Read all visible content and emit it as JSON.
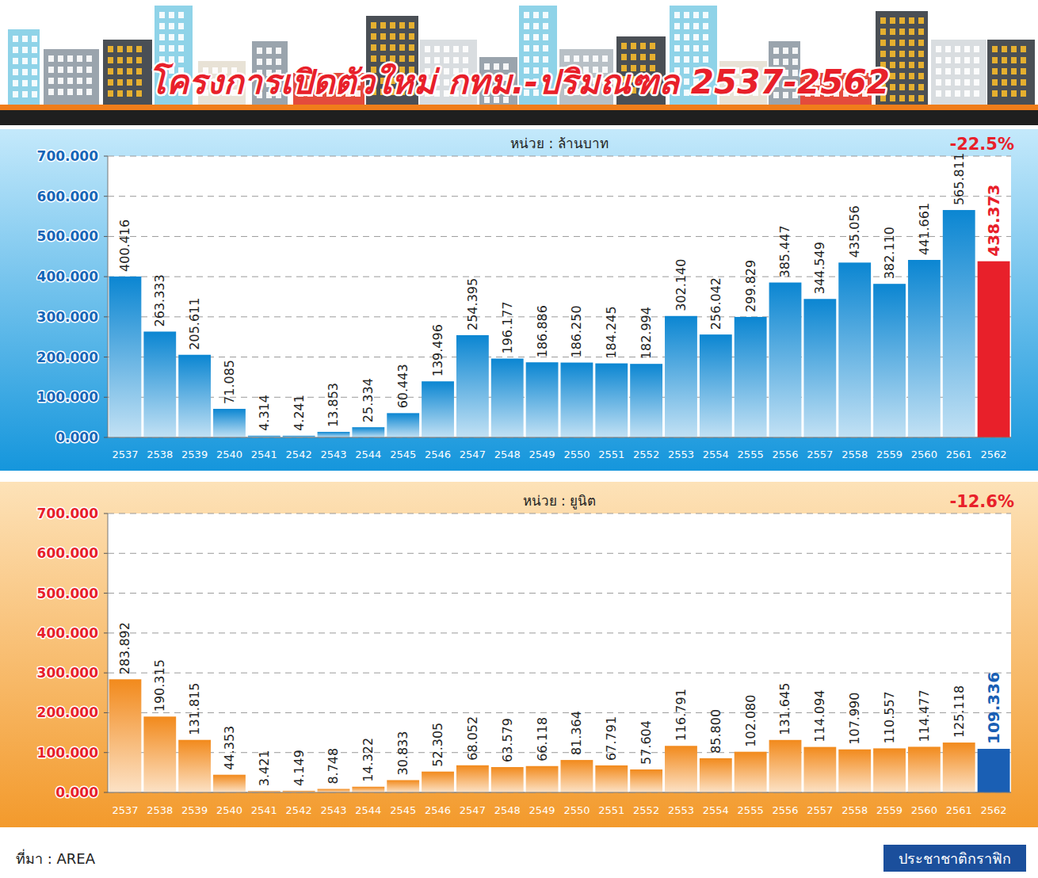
{
  "header": {
    "title": "โครงการเปิดตัวใหม่ กทม.-ปริมณฑล 2537-2562"
  },
  "footer": {
    "source": "ที่มา : AREA",
    "credit": "ประชาชาติกราฟิก"
  },
  "chart_data": [
    {
      "type": "bar",
      "subtitle": "หน่วย : ล้านบาท",
      "annotation": "-22.5%",
      "categories": [
        "2537",
        "2538",
        "2539",
        "2540",
        "2541",
        "2542",
        "2543",
        "2544",
        "2545",
        "2546",
        "2547",
        "2548",
        "2549",
        "2550",
        "2551",
        "2552",
        "2553",
        "2554",
        "2555",
        "2556",
        "2557",
        "2558",
        "2559",
        "2560",
        "2561",
        "2562"
      ],
      "values": [
        400.416,
        263.333,
        205.611,
        71.085,
        4.314,
        4.241,
        13.853,
        25.334,
        60.443,
        139.496,
        254.395,
        196.177,
        186.886,
        186.25,
        184.245,
        182.994,
        302.14,
        256.042,
        299.829,
        385.447,
        344.549,
        435.056,
        382.11,
        441.661,
        565.811,
        438.373
      ],
      "value_labels": [
        "400.416",
        "263.333",
        "205.611",
        "71.085",
        "4.314",
        "4.241",
        "13.853",
        "25.334",
        "60.443",
        "139.496",
        "254.395",
        "196.177",
        "186.886",
        "186.250",
        "184.245",
        "182.994",
        "302.140",
        "256.042",
        "299.829",
        "385.447",
        "344.549",
        "435.056",
        "382.110",
        "441.661",
        "565.811",
        "438.373"
      ],
      "colors": [
        "#0b86d2",
        "#0b86d2",
        "#0b86d2",
        "#0b86d2",
        "#0b86d2",
        "#0b86d2",
        "#0b86d2",
        "#0b86d2",
        "#0b86d2",
        "#0b86d2",
        "#0b86d2",
        "#0b86d2",
        "#0b86d2",
        "#0b86d2",
        "#0b86d2",
        "#0b86d2",
        "#0b86d2",
        "#0b86d2",
        "#0b86d2",
        "#0b86d2",
        "#0b86d2",
        "#0b86d2",
        "#0b86d2",
        "#0b86d2",
        "#0b86d2",
        "#e8202a"
      ],
      "ylim": [
        0,
        700
      ],
      "yticks": [
        {
          "value": 0,
          "label": "0.000"
        },
        {
          "value": 100,
          "label": "100.000"
        },
        {
          "value": 200,
          "label": "200.000"
        },
        {
          "value": 300,
          "label": "300.000"
        },
        {
          "value": 400,
          "label": "400.000"
        },
        {
          "value": 500,
          "label": "500.000"
        },
        {
          "value": 600,
          "label": "600.000"
        },
        {
          "value": 700,
          "label": "700.000"
        }
      ],
      "grid": true,
      "data_labels": true
    },
    {
      "type": "bar",
      "subtitle": "หน่วย : ยูนิต",
      "annotation": "-12.6%",
      "categories": [
        "2537",
        "2538",
        "2539",
        "2540",
        "2541",
        "2542",
        "2543",
        "2544",
        "2545",
        "2546",
        "2547",
        "2548",
        "2549",
        "2550",
        "2551",
        "2552",
        "2553",
        "2554",
        "2555",
        "2556",
        "2557",
        "2558",
        "2559",
        "2560",
        "2561",
        "2562"
      ],
      "values": [
        283.892,
        190.315,
        131.815,
        44.353,
        3.421,
        4.149,
        8.748,
        14.322,
        30.833,
        52.305,
        68.052,
        63.579,
        66.118,
        81.364,
        67.791,
        57.604,
        116.791,
        85.8,
        102.08,
        131.645,
        114.094,
        107.99,
        110.557,
        114.477,
        125.118,
        109.336
      ],
      "value_labels": [
        "283.892",
        "190.315",
        "131.815",
        "44.353",
        "3.421",
        "4.149",
        "8.748",
        "14.322",
        "30.833",
        "52.305",
        "68.052",
        "63.579",
        "66.118",
        "81.364",
        "67.791",
        "57.604",
        "116.791",
        "85.800",
        "102.080",
        "131.645",
        "114.094",
        "107.990",
        "110.557",
        "114.477",
        "125.118",
        "109.336"
      ],
      "colors": [
        "#f28a1c",
        "#f28a1c",
        "#f28a1c",
        "#f28a1c",
        "#f28a1c",
        "#f28a1c",
        "#f28a1c",
        "#f28a1c",
        "#f28a1c",
        "#f28a1c",
        "#f28a1c",
        "#f28a1c",
        "#f28a1c",
        "#f28a1c",
        "#f28a1c",
        "#f28a1c",
        "#f28a1c",
        "#f28a1c",
        "#f28a1c",
        "#f28a1c",
        "#f28a1c",
        "#f28a1c",
        "#f28a1c",
        "#f28a1c",
        "#f28a1c",
        "#1a5fb4"
      ],
      "ylim": [
        0,
        700
      ],
      "yticks": [
        {
          "value": 0,
          "label": "0.000"
        },
        {
          "value": 100,
          "label": "100.000"
        },
        {
          "value": 200,
          "label": "200.000"
        },
        {
          "value": 300,
          "label": "300.000"
        },
        {
          "value": 400,
          "label": "400.000"
        },
        {
          "value": 500,
          "label": "500.000"
        },
        {
          "value": 600,
          "label": "600.000"
        },
        {
          "value": 700,
          "label": "700.000"
        }
      ],
      "grid": true,
      "data_labels": true
    }
  ]
}
